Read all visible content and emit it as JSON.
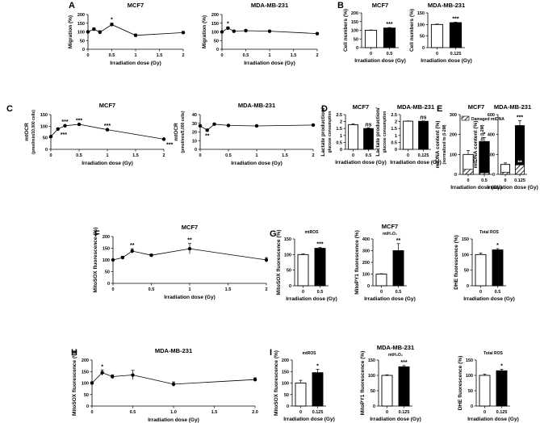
{
  "chart_data": [
    {
      "id": "A1",
      "panel": "A",
      "type": "line",
      "title": "MCF7",
      "xlabel": "Irradiation dose (Gy)",
      "ylabel": "Migration (%)",
      "xlim": [
        0,
        2
      ],
      "ylim": [
        0,
        200
      ],
      "xticks": [
        0,
        0.5,
        1,
        1.5,
        2
      ],
      "yticks": [
        0,
        50,
        100,
        150,
        200
      ],
      "series": [
        {
          "x": [
            0,
            0.125,
            0.25,
            0.5,
            1,
            2
          ],
          "y": [
            100,
            116,
            98,
            142,
            80,
            96
          ],
          "err": [
            6,
            7,
            9,
            9,
            8,
            4
          ],
          "sig": [
            "",
            "",
            "",
            "*",
            "",
            ""
          ]
        }
      ]
    },
    {
      "id": "A2",
      "type": "line",
      "title": "MDA-MB-231",
      "xlabel": "Irradiation dose (Gy)",
      "ylabel": "Migration (%)",
      "xlim": [
        0,
        2
      ],
      "ylim": [
        0,
        200
      ],
      "xticks": [
        0,
        0.5,
        1,
        1.5,
        2
      ],
      "yticks": [
        0,
        50,
        100,
        150,
        200
      ],
      "series": [
        {
          "x": [
            0,
            0.125,
            0.25,
            0.5,
            1,
            2
          ],
          "y": [
            100,
            122,
            104,
            107,
            104,
            90
          ],
          "err": [
            4,
            6,
            5,
            6,
            4,
            5
          ],
          "sig": [
            "",
            "*",
            "",
            "",
            "",
            ""
          ]
        }
      ]
    },
    {
      "id": "B1",
      "panel": "B",
      "type": "bar",
      "title": "MCF7",
      "xlabel": "Irradiation dose (Gy)",
      "ylabel": "Cell numbers (%)",
      "ylim": [
        0,
        200
      ],
      "yticks": [
        0,
        50,
        100,
        150,
        200
      ],
      "categories": [
        "0",
        "0.5"
      ],
      "values": [
        100,
        113
      ],
      "err": [
        2,
        3
      ],
      "sig": [
        "",
        "***"
      ]
    },
    {
      "id": "B2",
      "type": "bar",
      "title": "MDA-MB-231",
      "xlabel": "Irradiation dose (Gy)",
      "ylabel": "Cell numbers (%)",
      "ylim": [
        0,
        150
      ],
      "yticks": [
        0,
        50,
        100,
        150
      ],
      "categories": [
        "0",
        "0.125"
      ],
      "values": [
        100,
        108
      ],
      "err": [
        2,
        2
      ],
      "sig": [
        "",
        "***"
      ]
    },
    {
      "id": "C1",
      "panel": "C",
      "type": "line",
      "title": "MCF7",
      "xlabel": "Irradiation dose (Gy)",
      "ylabel": "mtOCR",
      "ylabel2": "(pmol/min/10,000 cells)",
      "xlim": [
        0,
        2
      ],
      "ylim": [
        0,
        150
      ],
      "xticks": [
        0,
        0.5,
        1,
        1.5,
        2
      ],
      "yticks": [
        0,
        50,
        100,
        150
      ],
      "series": [
        {
          "x": [
            0,
            0.125,
            0.25,
            0.5,
            1,
            2
          ],
          "y": [
            55,
            88,
            102,
            108,
            85,
            44
          ],
          "err": [
            2,
            2,
            2,
            2,
            2,
            2
          ],
          "sig": [
            "",
            "***",
            "***",
            "***",
            "***",
            "***"
          ]
        }
      ]
    },
    {
      "id": "C2",
      "type": "line",
      "title": "MDA-MB-231",
      "xlabel": "Irradiation dose (Gy)",
      "ylabel": "mtOCR",
      "ylabel2": "(pmol/min/5,000 cells)",
      "xlim": [
        0,
        2
      ],
      "ylim": [
        0,
        40
      ],
      "xticks": [
        0,
        0.5,
        1,
        1.5,
        2
      ],
      "yticks": [
        0,
        10,
        20,
        30,
        40
      ],
      "series": [
        {
          "x": [
            0,
            0.125,
            0.25,
            0.5,
            1,
            2
          ],
          "y": [
            27,
            22,
            29,
            27.5,
            27,
            28
          ],
          "err": [
            1.2,
            1.5,
            1,
            1,
            0.8,
            1
          ],
          "sig": [
            "",
            "**",
            "",
            "",
            "",
            ""
          ]
        }
      ]
    },
    {
      "id": "D1",
      "panel": "D",
      "type": "bar",
      "title": "MCF7",
      "xlabel": "Irradiation dose (Gy)",
      "ylabel": "Lactate production/",
      "ylabel2": "glucose consumption",
      "ylim": [
        0,
        2.5
      ],
      "yticks": [
        0,
        0.5,
        1,
        1.5,
        2,
        2.5
      ],
      "categories": [
        "0",
        "0.5"
      ],
      "values": [
        1.78,
        1.5
      ],
      "err": [
        0.05,
        0.05
      ],
      "sig": [
        "",
        "ns"
      ]
    },
    {
      "id": "D2",
      "type": "bar",
      "title": "MDA-MB-231",
      "xlabel": "Irradiation dose (Gy)",
      "ylabel": "Lactate production/",
      "ylabel2": "glucose consumption",
      "ylim": [
        0,
        2.5
      ],
      "yticks": [
        0,
        0.5,
        1,
        1.5,
        2,
        2.5
      ],
      "categories": [
        "0",
        "0.125"
      ],
      "values": [
        2.03,
        2.02
      ],
      "err": [
        0.02,
        0.03
      ],
      "sig": [
        "",
        "ns"
      ]
    },
    {
      "id": "E1",
      "panel": "E",
      "type": "bar",
      "title": "MCF7",
      "xlabel": "Irradiation dose (Gy)",
      "ylabel": "mtDNA content (%)",
      "ylabel2": "(normalized to β-2M)",
      "ylim": [
        0,
        300
      ],
      "yticks": [
        0,
        100,
        200,
        300
      ],
      "categories": [
        "0",
        "0.5"
      ],
      "values": [
        100,
        165
      ],
      "err": [
        20,
        20
      ],
      "damaged": [
        25,
        8
      ],
      "sig": [
        "",
        "*"
      ],
      "legend": "Damaged mtDNA"
    },
    {
      "id": "E2",
      "type": "bar",
      "title": "MDA-MB-231",
      "xlabel": "Irradiation dose (Gy)",
      "ylabel": "mtDNA content (%)",
      "ylabel2": "(normalized to β-2M)",
      "ylim": [
        0,
        600
      ],
      "yticks": [
        0,
        200,
        400,
        600
      ],
      "categories": [
        "0",
        "0.125"
      ],
      "values": [
        100,
        490
      ],
      "err": [
        15,
        50
      ],
      "damaged": [
        22,
        95
      ],
      "sig": [
        "",
        "***"
      ],
      "sig2": "**"
    },
    {
      "id": "F",
      "panel": "F",
      "type": "line",
      "title": "MCF7",
      "xlabel": "Irradiation dose (Gy)",
      "ylabel": "MitoSOX fluorescence (%)",
      "xlim": [
        0,
        2
      ],
      "ylim": [
        0,
        200
      ],
      "xticks": [
        0,
        0.5,
        1,
        1.5,
        2
      ],
      "yticks": [
        0,
        50,
        100,
        150,
        200
      ],
      "series": [
        {
          "x": [
            0,
            0.125,
            0.25,
            0.5,
            1,
            2
          ],
          "y": [
            100,
            110,
            138,
            120,
            148,
            100
          ],
          "err": [
            3,
            6,
            10,
            5,
            22,
            10
          ],
          "sig": [
            "",
            "",
            "**",
            "",
            "**",
            ""
          ]
        }
      ]
    },
    {
      "id": "G1",
      "panel": "G",
      "type": "bar",
      "title": "mtROS",
      "xlabel": "Irradiation dose (Gy)",
      "ylabel": "MitoSOX fluorescence (%)",
      "ylim": [
        0,
        150
      ],
      "yticks": [
        0,
        50,
        100,
        150
      ],
      "categories": [
        "0",
        "0.5"
      ],
      "values": [
        100,
        120
      ],
      "err": [
        2,
        3
      ],
      "sig": [
        "",
        "***"
      ]
    },
    {
      "id": "G2",
      "type": "bar",
      "title": "MCF7",
      "subtitle": "mtH₂O₂",
      "xlabel": "Irradiation dose (Gy)",
      "ylabel": "MitoPY1 fluorescence (%)",
      "ylim": [
        0,
        400
      ],
      "yticks": [
        0,
        100,
        200,
        300,
        400
      ],
      "categories": [
        "0",
        "0.5"
      ],
      "values": [
        100,
        300
      ],
      "err": [
        3,
        60
      ],
      "sig": [
        "",
        "**"
      ]
    },
    {
      "id": "G3",
      "type": "bar",
      "title": "Total ROS",
      "xlabel": "Irradiation dose (Gy)",
      "ylabel": "DHE fluorescence (%)",
      "ylim": [
        0,
        150
      ],
      "yticks": [
        0,
        50,
        100,
        150
      ],
      "categories": [
        "0",
        "0.5"
      ],
      "values": [
        100,
        115
      ],
      "err": [
        5,
        4
      ],
      "sig": [
        "",
        "*"
      ]
    },
    {
      "id": "H",
      "panel": "H",
      "type": "line",
      "title": "MDA-MB-231",
      "xlabel": "Irradiation dose (Gy)",
      "ylabel": "MitoSOX fluorescence (%)",
      "xlim": [
        0,
        2
      ],
      "ylim": [
        0,
        200
      ],
      "xticks": [
        0,
        0.5,
        1,
        1.5,
        2
      ],
      "xticklabels": [
        "0",
        "0.5",
        "1.0",
        "1.5",
        "2.0"
      ],
      "yticks": [
        0,
        50,
        100,
        150,
        200
      ],
      "series": [
        {
          "x": [
            0,
            0.125,
            0.25,
            0.5,
            1,
            2
          ],
          "y": [
            100,
            145,
            128,
            135,
            95,
            115
          ],
          "err": [
            5,
            12,
            8,
            20,
            10,
            8
          ],
          "sig": [
            "",
            "*",
            "",
            "",
            "",
            ""
          ]
        }
      ]
    },
    {
      "id": "I1",
      "panel": "I",
      "type": "bar",
      "title": "mtROS",
      "xlabel": "Irradiation dose (Gy)",
      "ylabel": "MitoSOX fluorescence (%)",
      "ylim": [
        0,
        200
      ],
      "yticks": [
        0,
        50,
        100,
        150,
        200
      ],
      "categories": [
        "0",
        "0.125"
      ],
      "values": [
        100,
        145
      ],
      "err": [
        12,
        15
      ],
      "sig": [
        "",
        "*"
      ]
    },
    {
      "id": "I2",
      "type": "bar",
      "title": "MDA-MB-231",
      "subtitle": "mtH₂O₂",
      "xlabel": "Irradiation dose (Gy)",
      "ylabel": "MitoPY1 fluorescence (%)",
      "ylim": [
        0,
        150
      ],
      "yticks": [
        0,
        50,
        100,
        150
      ],
      "categories": [
        "0",
        "0.125"
      ],
      "values": [
        100,
        128
      ],
      "err": [
        2,
        4
      ],
      "sig": [
        "",
        "***"
      ]
    },
    {
      "id": "I3",
      "type": "bar",
      "title": "Total ROS",
      "xlabel": "Irradiation dose (Gy)",
      "ylabel": "DHE fluorescence (%)",
      "ylim": [
        0,
        150
      ],
      "yticks": [
        0,
        50,
        100,
        150
      ],
      "categories": [
        "0",
        "0.125"
      ],
      "values": [
        100,
        115
      ],
      "err": [
        4,
        5
      ],
      "sig": [
        "",
        "*"
      ]
    }
  ]
}
